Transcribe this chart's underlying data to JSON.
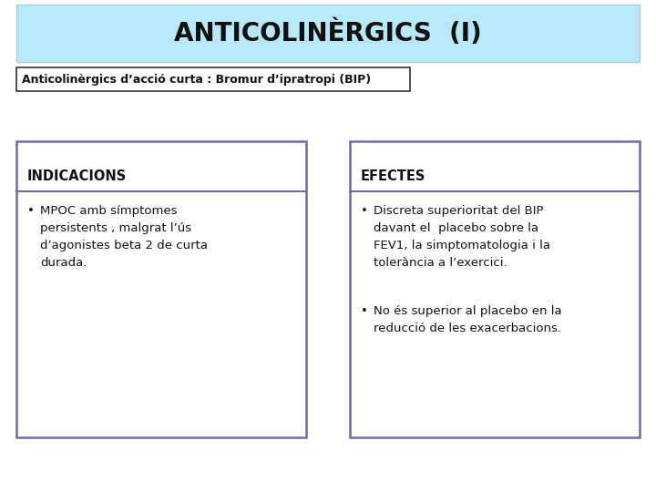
{
  "title": "ANTICOLINÈRGICS  (I)",
  "subtitle": "Anticolinèrgics d’acció curta : Bromur d’ipratropi (BIP)",
  "title_bg": "#b8e8f8",
  "title_border": "#aaccdd",
  "subtitle_border": "#333333",
  "subtitle_bg": "#ffffff",
  "box_border": "#7766aa",
  "box_bg": "#ffffff",
  "page_bg": "#ffffff",
  "left_box_header": "INDICACIONS",
  "right_box_header": "EFECTES",
  "left_bullets": [
    "MPOC amb símptomes\npersistents , malgrat l’ús\nd’agonistes beta 2 de curta\ndurada."
  ],
  "right_bullets": [
    "Discreta superioritat del BIP\ndavant el  placebo sobre la\nFEV1, la simptomatologia i la\ntolerància a l’exercici.",
    "No és superior al placebo en la\nreducció de les exacerbacions."
  ],
  "title_fontsize": 20,
  "subtitle_fontsize": 9,
  "header_fontsize": 10.5,
  "body_fontsize": 9.5
}
